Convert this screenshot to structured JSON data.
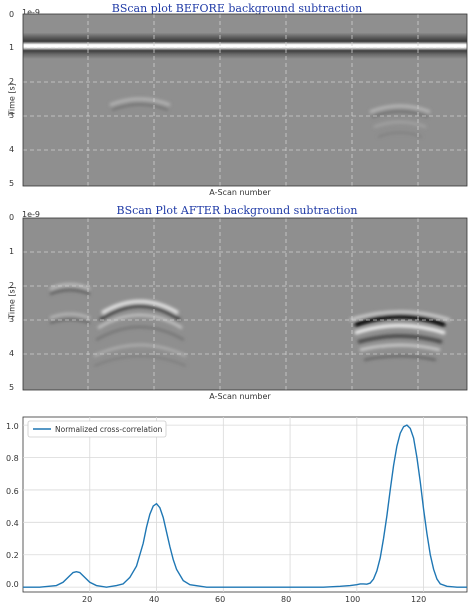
{
  "chart_data": [
    {
      "type": "heatmap",
      "title": "BScan plot BEFORE background subtraction",
      "ylabel": "Time [s]",
      "xlabel": "A-Scan number",
      "yscale_note": "1e-9",
      "ylim": [
        5,
        0
      ],
      "yticks": [
        "0",
        "1",
        "2",
        "3",
        "4",
        "5"
      ],
      "colormap": "gray",
      "grid": true,
      "features": [
        {
          "name": "direct wave",
          "time": 1.0,
          "strength": 1.0
        },
        {
          "name": "hyperbola",
          "center_ascan": 40,
          "apex_time": 2.6,
          "strength": 0.25
        },
        {
          "name": "hyperbola",
          "center_ascan": 116,
          "apex_time": 2.8,
          "strength": 0.35
        }
      ]
    },
    {
      "type": "heatmap",
      "title": "BScan Plot AFTER background subtraction",
      "ylabel": "Time [s]",
      "xlabel": "A-Scan number",
      "yscale_note": "1e-9",
      "ylim": [
        5,
        0
      ],
      "yticks": [
        "0",
        "1",
        "2",
        "3",
        "4",
        "5"
      ],
      "colormap": "gray",
      "grid": true,
      "features": [
        {
          "name": "hyperbola",
          "center_ascan": 16,
          "apex_time": 2.0,
          "strength": 0.35
        },
        {
          "name": "hyperbola",
          "center_ascan": 40,
          "apex_time": 2.6,
          "strength": 0.7
        },
        {
          "name": "hyperbola",
          "center_ascan": 116,
          "apex_time": 2.8,
          "strength": 1.0
        }
      ]
    },
    {
      "type": "line",
      "legend": "top-left",
      "xlim": [
        0,
        133
      ],
      "ylim": [
        -0.03,
        1.05
      ],
      "xticks": [
        "20",
        "40",
        "60",
        "80",
        "100",
        "120"
      ],
      "yticks": [
        "0.0",
        "0.2",
        "0.4",
        "0.6",
        "0.8",
        "1.0"
      ],
      "grid": true,
      "series": [
        {
          "name": "Normalized cross-correlation",
          "color": "#1f77b4",
          "x": [
            0,
            5,
            10,
            12,
            14,
            15,
            16,
            17,
            18,
            20,
            22,
            25,
            28,
            30,
            32,
            34,
            36,
            37,
            38,
            39,
            40,
            41,
            42,
            43,
            44,
            45,
            46,
            48,
            50,
            55,
            60,
            70,
            80,
            90,
            95,
            98,
            100,
            101,
            102,
            103,
            104,
            105,
            106,
            107,
            108,
            109,
            110,
            111,
            112,
            113,
            114,
            115,
            116,
            117,
            118,
            119,
            120,
            121,
            122,
            123,
            124,
            125,
            127,
            130,
            133
          ],
          "values": [
            0.0,
            0.0,
            0.01,
            0.03,
            0.07,
            0.09,
            0.095,
            0.09,
            0.07,
            0.03,
            0.01,
            0.0,
            0.01,
            0.02,
            0.06,
            0.13,
            0.27,
            0.37,
            0.45,
            0.5,
            0.515,
            0.49,
            0.43,
            0.34,
            0.25,
            0.17,
            0.11,
            0.04,
            0.015,
            0.0,
            0.0,
            0.0,
            0.0,
            0.0,
            0.005,
            0.01,
            0.015,
            0.02,
            0.02,
            0.018,
            0.025,
            0.05,
            0.1,
            0.18,
            0.3,
            0.44,
            0.6,
            0.75,
            0.87,
            0.95,
            0.99,
            1.0,
            0.98,
            0.92,
            0.8,
            0.65,
            0.48,
            0.33,
            0.2,
            0.11,
            0.05,
            0.02,
            0.005,
            0.0,
            0.0
          ]
        }
      ]
    }
  ]
}
